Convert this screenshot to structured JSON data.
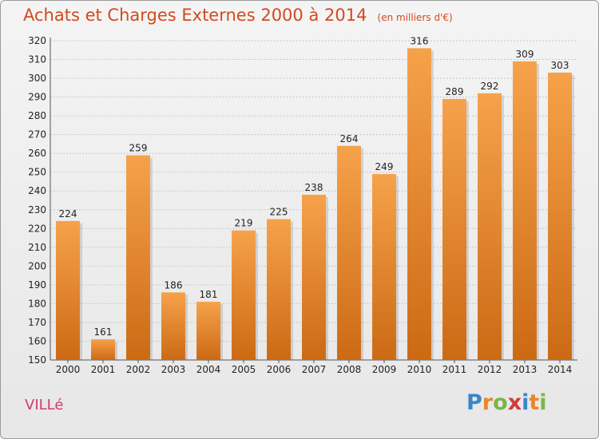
{
  "header": {
    "title": "Achats et Charges Externes 2000 à 2014",
    "unit": "(en milliers d'€)"
  },
  "footer": {
    "commune": "VILLé",
    "logo_letters": [
      {
        "char": "P",
        "color": "#3a86c8"
      },
      {
        "char": "r",
        "color": "#e8862a"
      },
      {
        "char": "o",
        "color": "#7ab648"
      },
      {
        "char": "x",
        "color": "#d23a3a"
      },
      {
        "char": "i",
        "color": "#3a86c8"
      },
      {
        "char": "t",
        "color": "#e8862a"
      },
      {
        "char": "i",
        "color": "#7ab648"
      }
    ]
  },
  "colors": {
    "bar_light": "#f6a24a",
    "bar_dark": "#cc6a14",
    "title": "#d24a1e",
    "grid": "#c8c8c8",
    "axis_text": "#222222"
  },
  "chart_data": {
    "type": "bar",
    "title": "Achats et Charges Externes 2000 à 2014",
    "subtitle": "(en milliers d'€)",
    "xlabel": "",
    "ylabel": "",
    "categories": [
      "2000",
      "2001",
      "2002",
      "2003",
      "2004",
      "2005",
      "2006",
      "2007",
      "2008",
      "2009",
      "2010",
      "2011",
      "2012",
      "2013",
      "2014"
    ],
    "values": [
      224,
      161,
      259,
      186,
      181,
      219,
      225,
      238,
      264,
      249,
      316,
      289,
      292,
      309,
      303
    ],
    "ylim": [
      150,
      320
    ],
    "yticks": [
      150,
      160,
      170,
      180,
      190,
      200,
      210,
      220,
      230,
      240,
      250,
      260,
      270,
      280,
      290,
      300,
      310,
      320
    ],
    "grid": true,
    "data_labels": true
  }
}
